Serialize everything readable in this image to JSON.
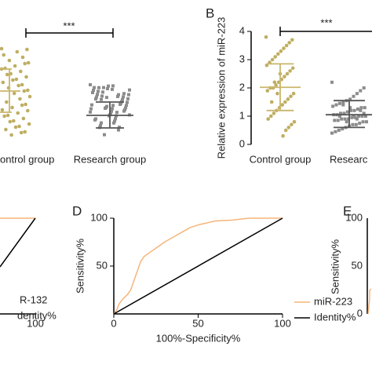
{
  "panel_a": {
    "significance": "***",
    "categories": [
      "ontrol group",
      "Research group"
    ]
  },
  "panel_c": {
    "legend": [
      "R-132",
      "dentity%"
    ],
    "xtick": "100"
  },
  "panel_e": {
    "label": "E",
    "ylabel": "Sensitivity%",
    "yticks": [
      "100",
      "50",
      "0"
    ]
  },
  "chart_data": [
    {
      "type": "dotplot",
      "label": "B",
      "ylabel": "Relative expression of miR-223",
      "categories": [
        "Control group",
        "Researc"
      ],
      "significance": "***",
      "colors": [
        "#bfae62",
        "#8c8c8c"
      ],
      "mean_color": "#c9b66c",
      "values": [
        [
          3.8,
          3.7,
          3.6,
          3.5,
          3.4,
          3.3,
          3.2,
          3.1,
          3.0,
          2.9,
          2.8,
          2.7,
          2.6,
          2.5,
          2.4,
          2.3,
          2.2,
          2.1,
          2.0,
          2.0,
          1.9,
          1.8,
          1.7,
          1.6,
          1.5,
          1.4,
          1.3,
          1.2,
          1.1,
          1.0,
          0.9,
          0.8,
          0.7,
          0.6,
          0.5,
          0.3,
          2.5,
          1.8,
          2.2,
          1.5
        ],
        [
          2.2,
          2.0,
          1.9,
          1.8,
          1.7,
          1.6,
          1.55,
          1.5,
          1.45,
          1.4,
          1.35,
          1.3,
          1.3,
          1.25,
          1.2,
          1.2,
          1.15,
          1.1,
          1.1,
          1.05,
          1.05,
          1.0,
          1.0,
          1.0,
          0.95,
          0.95,
          0.9,
          0.9,
          0.9,
          0.85,
          0.85,
          0.8,
          0.8,
          0.75,
          0.7,
          0.7,
          0.65,
          0.6,
          0.55,
          0.5,
          0.45,
          0.4,
          1.1,
          1.2,
          0.9,
          1.0,
          1.3,
          0.8,
          1.4,
          1.0
        ]
      ],
      "means": [
        2.02,
        1.05
      ],
      "sd_low": [
        1.2,
        0.6
      ],
      "sd_high": [
        2.85,
        1.55
      ],
      "ylim": [
        0,
        4
      ],
      "yticks": [
        0,
        1,
        2,
        3,
        4
      ]
    },
    {
      "type": "line",
      "label": "D",
      "xlabel": "100%-Specificity%",
      "ylabel": "Sensitivity%",
      "xlim": [
        0,
        100
      ],
      "ylim": [
        0,
        100
      ],
      "xticks": [
        0,
        50,
        100
      ],
      "yticks": [
        50,
        100
      ],
      "series": [
        {
          "name": "miR-223",
          "color": "#f5b57a",
          "x": [
            0,
            2,
            3,
            5,
            8,
            10,
            12,
            14,
            16,
            18,
            22,
            26,
            30,
            35,
            40,
            45,
            50,
            55,
            60,
            70,
            80,
            100
          ],
          "values": [
            0,
            5,
            10,
            15,
            20,
            25,
            35,
            45,
            55,
            60,
            65,
            70,
            75,
            80,
            85,
            90,
            93,
            95,
            97,
            98,
            100,
            100
          ]
        },
        {
          "name": "Identity%",
          "color": "#000000",
          "x": [
            0,
            100
          ],
          "values": [
            0,
            100
          ]
        }
      ]
    }
  ]
}
